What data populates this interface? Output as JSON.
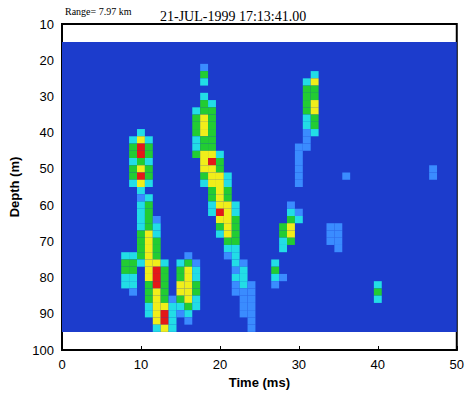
{
  "chart_data": {
    "type": "heatmap",
    "title": "21-JUL-1999 17:13:41.00",
    "subtitle": "Range= 7.97 km",
    "x_label": "Time (ms)",
    "y_label": "Depth (m)",
    "xlim": [
      0,
      50
    ],
    "xticks": [
      0,
      10,
      20,
      30,
      40,
      50
    ],
    "ylim": [
      100,
      10
    ],
    "yticks": [
      10,
      20,
      30,
      40,
      50,
      60,
      70,
      80,
      90,
      100
    ],
    "grid": false,
    "heatmap": {
      "extent": {
        "x": [
          0,
          50
        ],
        "y": [
          15,
          95
        ]
      },
      "cell_size": {
        "x": 1,
        "y": 2
      },
      "level_colors": [
        "#1c3ccc",
        "#3a8cff",
        "#22dde6",
        "#22cc33",
        "#f0ee1a",
        "#e41818"
      ],
      "cells": [
        [
          10,
          40,
          2
        ],
        [
          9,
          42,
          2
        ],
        [
          10,
          42,
          4
        ],
        [
          11,
          42,
          2
        ],
        [
          9,
          44,
          3
        ],
        [
          10,
          44,
          5
        ],
        [
          11,
          44,
          3
        ],
        [
          9,
          46,
          3
        ],
        [
          10,
          46,
          5
        ],
        [
          11,
          46,
          3
        ],
        [
          9,
          48,
          2
        ],
        [
          10,
          48,
          3
        ],
        [
          11,
          48,
          2
        ],
        [
          9,
          50,
          3
        ],
        [
          10,
          50,
          4
        ],
        [
          11,
          50,
          3
        ],
        [
          9,
          52,
          3
        ],
        [
          10,
          52,
          5
        ],
        [
          11,
          52,
          3
        ],
        [
          9,
          54,
          2
        ],
        [
          10,
          54,
          4
        ],
        [
          11,
          54,
          2
        ],
        [
          10,
          56,
          2
        ],
        [
          10,
          58,
          1
        ],
        [
          11,
          58,
          2
        ],
        [
          10,
          60,
          2
        ],
        [
          11,
          60,
          3
        ],
        [
          10,
          62,
          2
        ],
        [
          11,
          62,
          3
        ],
        [
          10,
          64,
          2
        ],
        [
          11,
          64,
          3
        ],
        [
          12,
          64,
          1
        ],
        [
          10,
          66,
          2
        ],
        [
          11,
          66,
          3
        ],
        [
          12,
          66,
          2
        ],
        [
          10,
          68,
          3
        ],
        [
          11,
          68,
          4
        ],
        [
          12,
          68,
          2
        ],
        [
          10,
          70,
          3
        ],
        [
          11,
          70,
          4
        ],
        [
          12,
          70,
          3
        ],
        [
          10,
          72,
          3
        ],
        [
          11,
          72,
          4
        ],
        [
          12,
          72,
          3
        ],
        [
          8,
          74,
          2
        ],
        [
          9,
          74,
          2
        ],
        [
          10,
          74,
          3
        ],
        [
          11,
          74,
          4
        ],
        [
          12,
          74,
          3
        ],
        [
          8,
          76,
          3
        ],
        [
          9,
          76,
          3
        ],
        [
          10,
          76,
          2
        ],
        [
          11,
          76,
          4
        ],
        [
          12,
          76,
          4
        ],
        [
          13,
          76,
          2
        ],
        [
          8,
          78,
          3
        ],
        [
          9,
          78,
          3
        ],
        [
          11,
          78,
          4
        ],
        [
          12,
          78,
          5
        ],
        [
          13,
          78,
          3
        ],
        [
          8,
          80,
          2
        ],
        [
          9,
          80,
          2
        ],
        [
          11,
          80,
          4
        ],
        [
          12,
          80,
          5
        ],
        [
          13,
          80,
          3
        ],
        [
          8,
          82,
          2
        ],
        [
          9,
          82,
          2
        ],
        [
          11,
          82,
          3
        ],
        [
          12,
          82,
          5
        ],
        [
          13,
          82,
          3
        ],
        [
          9,
          84,
          1
        ],
        [
          11,
          84,
          3
        ],
        [
          12,
          84,
          4
        ],
        [
          13,
          84,
          3
        ],
        [
          11,
          86,
          3
        ],
        [
          12,
          86,
          4
        ],
        [
          13,
          86,
          3
        ],
        [
          14,
          86,
          1
        ],
        [
          11,
          88,
          2
        ],
        [
          12,
          88,
          4
        ],
        [
          13,
          88,
          4
        ],
        [
          14,
          88,
          2
        ],
        [
          11,
          90,
          2
        ],
        [
          12,
          90,
          4
        ],
        [
          13,
          90,
          5
        ],
        [
          14,
          90,
          2
        ],
        [
          12,
          92,
          4
        ],
        [
          13,
          92,
          5
        ],
        [
          14,
          92,
          2
        ],
        [
          12,
          94,
          2
        ],
        [
          13,
          94,
          4
        ],
        [
          14,
          94,
          2
        ],
        [
          16,
          74,
          1
        ],
        [
          15,
          76,
          2
        ],
        [
          16,
          76,
          3
        ],
        [
          17,
          76,
          1
        ],
        [
          15,
          78,
          3
        ],
        [
          16,
          78,
          4
        ],
        [
          17,
          78,
          2
        ],
        [
          15,
          80,
          3
        ],
        [
          16,
          80,
          4
        ],
        [
          17,
          80,
          2
        ],
        [
          15,
          82,
          4
        ],
        [
          16,
          82,
          4
        ],
        [
          17,
          82,
          3
        ],
        [
          15,
          84,
          4
        ],
        [
          16,
          84,
          4
        ],
        [
          17,
          84,
          3
        ],
        [
          15,
          86,
          3
        ],
        [
          16,
          86,
          4
        ],
        [
          17,
          86,
          2
        ],
        [
          15,
          88,
          2
        ],
        [
          16,
          88,
          3
        ],
        [
          17,
          88,
          2
        ],
        [
          15,
          90,
          1
        ],
        [
          16,
          90,
          2
        ],
        [
          16,
          92,
          1
        ],
        [
          18,
          22,
          1
        ],
        [
          18,
          24,
          3
        ],
        [
          18,
          26,
          2
        ],
        [
          18,
          30,
          2
        ],
        [
          18,
          32,
          3
        ],
        [
          19,
          32,
          2
        ],
        [
          17,
          34,
          2
        ],
        [
          18,
          34,
          3
        ],
        [
          19,
          34,
          3
        ],
        [
          17,
          36,
          3
        ],
        [
          18,
          36,
          4
        ],
        [
          19,
          36,
          3
        ],
        [
          17,
          38,
          3
        ],
        [
          18,
          38,
          4
        ],
        [
          19,
          38,
          3
        ],
        [
          17,
          40,
          3
        ],
        [
          18,
          40,
          4
        ],
        [
          19,
          40,
          3
        ],
        [
          17,
          42,
          2
        ],
        [
          18,
          42,
          3
        ],
        [
          19,
          42,
          3
        ],
        [
          17,
          44,
          2
        ],
        [
          18,
          44,
          3
        ],
        [
          19,
          44,
          3
        ],
        [
          17,
          46,
          3
        ],
        [
          18,
          46,
          4
        ],
        [
          19,
          46,
          4
        ],
        [
          20,
          46,
          2
        ],
        [
          18,
          48,
          4
        ],
        [
          19,
          48,
          5
        ],
        [
          20,
          48,
          3
        ],
        [
          18,
          50,
          4
        ],
        [
          19,
          50,
          4
        ],
        [
          20,
          50,
          3
        ],
        [
          18,
          52,
          3
        ],
        [
          19,
          52,
          4
        ],
        [
          20,
          52,
          4
        ],
        [
          21,
          52,
          2
        ],
        [
          18,
          54,
          2
        ],
        [
          19,
          54,
          4
        ],
        [
          20,
          54,
          4
        ],
        [
          21,
          54,
          2
        ],
        [
          19,
          56,
          3
        ],
        [
          20,
          56,
          4
        ],
        [
          21,
          56,
          3
        ],
        [
          19,
          58,
          3
        ],
        [
          20,
          58,
          4
        ],
        [
          21,
          58,
          3
        ],
        [
          19,
          60,
          2
        ],
        [
          20,
          60,
          4
        ],
        [
          21,
          60,
          4
        ],
        [
          22,
          60,
          2
        ],
        [
          19,
          62,
          2
        ],
        [
          20,
          62,
          5
        ],
        [
          21,
          62,
          4
        ],
        [
          22,
          62,
          2
        ],
        [
          20,
          64,
          4
        ],
        [
          21,
          64,
          4
        ],
        [
          22,
          64,
          3
        ],
        [
          20,
          66,
          3
        ],
        [
          21,
          66,
          4
        ],
        [
          22,
          66,
          3
        ],
        [
          20,
          68,
          2
        ],
        [
          21,
          68,
          4
        ],
        [
          22,
          68,
          3
        ],
        [
          21,
          70,
          3
        ],
        [
          22,
          70,
          3
        ],
        [
          21,
          72,
          2
        ],
        [
          22,
          72,
          2
        ],
        [
          21,
          74,
          1
        ],
        [
          22,
          74,
          2
        ],
        [
          22,
          76,
          2
        ],
        [
          23,
          76,
          1
        ],
        [
          22,
          78,
          1
        ],
        [
          23,
          78,
          2
        ],
        [
          22,
          80,
          2
        ],
        [
          23,
          80,
          2
        ],
        [
          22,
          82,
          1
        ],
        [
          23,
          82,
          2
        ],
        [
          24,
          82,
          1
        ],
        [
          22,
          84,
          1
        ],
        [
          23,
          84,
          1
        ],
        [
          24,
          84,
          1
        ],
        [
          23,
          86,
          1
        ],
        [
          24,
          86,
          1
        ],
        [
          23,
          88,
          1
        ],
        [
          24,
          88,
          1
        ],
        [
          23,
          90,
          1
        ],
        [
          24,
          90,
          1
        ],
        [
          24,
          92,
          1
        ],
        [
          24,
          94,
          1
        ],
        [
          32,
          24,
          2
        ],
        [
          31,
          26,
          2
        ],
        [
          32,
          26,
          4
        ],
        [
          31,
          28,
          3
        ],
        [
          32,
          28,
          3
        ],
        [
          31,
          30,
          3
        ],
        [
          32,
          30,
          3
        ],
        [
          31,
          32,
          3
        ],
        [
          32,
          32,
          4
        ],
        [
          31,
          34,
          3
        ],
        [
          32,
          34,
          4
        ],
        [
          31,
          36,
          2
        ],
        [
          32,
          36,
          3
        ],
        [
          31,
          38,
          2
        ],
        [
          32,
          38,
          3
        ],
        [
          31,
          40,
          1
        ],
        [
          32,
          40,
          2
        ],
        [
          31,
          42,
          1
        ],
        [
          30,
          44,
          1
        ],
        [
          31,
          44,
          1
        ],
        [
          30,
          46,
          1
        ],
        [
          30,
          48,
          1
        ],
        [
          30,
          50,
          1
        ],
        [
          30,
          52,
          1
        ],
        [
          30,
          54,
          1
        ],
        [
          29,
          60,
          1
        ],
        [
          29,
          62,
          2
        ],
        [
          30,
          62,
          1
        ],
        [
          29,
          64,
          3
        ],
        [
          30,
          64,
          2
        ],
        [
          28,
          66,
          3
        ],
        [
          29,
          66,
          4
        ],
        [
          28,
          68,
          3
        ],
        [
          29,
          68,
          4
        ],
        [
          28,
          70,
          2
        ],
        [
          29,
          70,
          3
        ],
        [
          28,
          72,
          2
        ],
        [
          27,
          76,
          2
        ],
        [
          27,
          78,
          3
        ],
        [
          27,
          80,
          2
        ],
        [
          28,
          80,
          1
        ],
        [
          27,
          82,
          1
        ],
        [
          34,
          66,
          1
        ],
        [
          35,
          66,
          1
        ],
        [
          34,
          68,
          1
        ],
        [
          35,
          68,
          1
        ],
        [
          34,
          70,
          1
        ],
        [
          35,
          70,
          1
        ],
        [
          35,
          72,
          1
        ],
        [
          40,
          82,
          2
        ],
        [
          40,
          84,
          3
        ],
        [
          40,
          86,
          2
        ],
        [
          47,
          50,
          1
        ],
        [
          47,
          52,
          1
        ],
        [
          36,
          52,
          1
        ]
      ]
    }
  }
}
